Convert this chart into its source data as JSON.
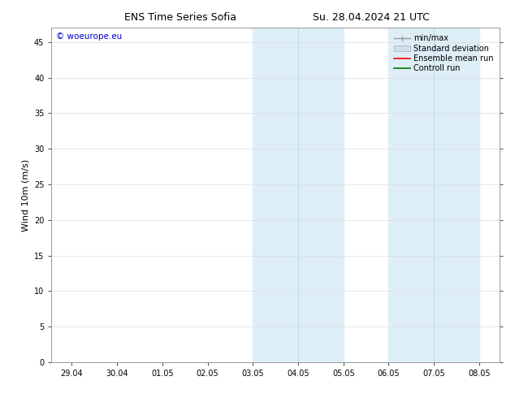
{
  "title_left": "ENS Time Series Sofia",
  "title_right": "Su. 28.04.2024 21 UTC",
  "ylabel": "Wind 10m (m/s)",
  "ylim": [
    0,
    47
  ],
  "yticks": [
    0,
    5,
    10,
    15,
    20,
    25,
    30,
    35,
    40,
    45
  ],
  "xtick_labels": [
    "29.04",
    "30.04",
    "01.05",
    "02.05",
    "03.05",
    "04.05",
    "05.05",
    "06.05",
    "07.05",
    "08.05"
  ],
  "xtick_positions": [
    0,
    1,
    2,
    3,
    4,
    5,
    6,
    7,
    8,
    9
  ],
  "shade_bands": [
    [
      4.0,
      5.0
    ],
    [
      5.0,
      6.0
    ],
    [
      7.0,
      8.0
    ],
    [
      8.0,
      9.0
    ]
  ],
  "shade_dividers": [
    5.0,
    8.0
  ],
  "shade_color": "#ddeef7",
  "divider_color": "#c0d8e8",
  "watermark_text": "© woeurope.eu",
  "watermark_color": "#0000cc",
  "background_color": "#ffffff",
  "legend_minmax_color": "#999999",
  "legend_std_color": "#cce0f0",
  "legend_ensemble_color": "#ff0000",
  "legend_control_color": "#007700",
  "title_fontsize": 9,
  "ylabel_fontsize": 8,
  "tick_fontsize": 7,
  "legend_fontsize": 7,
  "watermark_fontsize": 7.5
}
